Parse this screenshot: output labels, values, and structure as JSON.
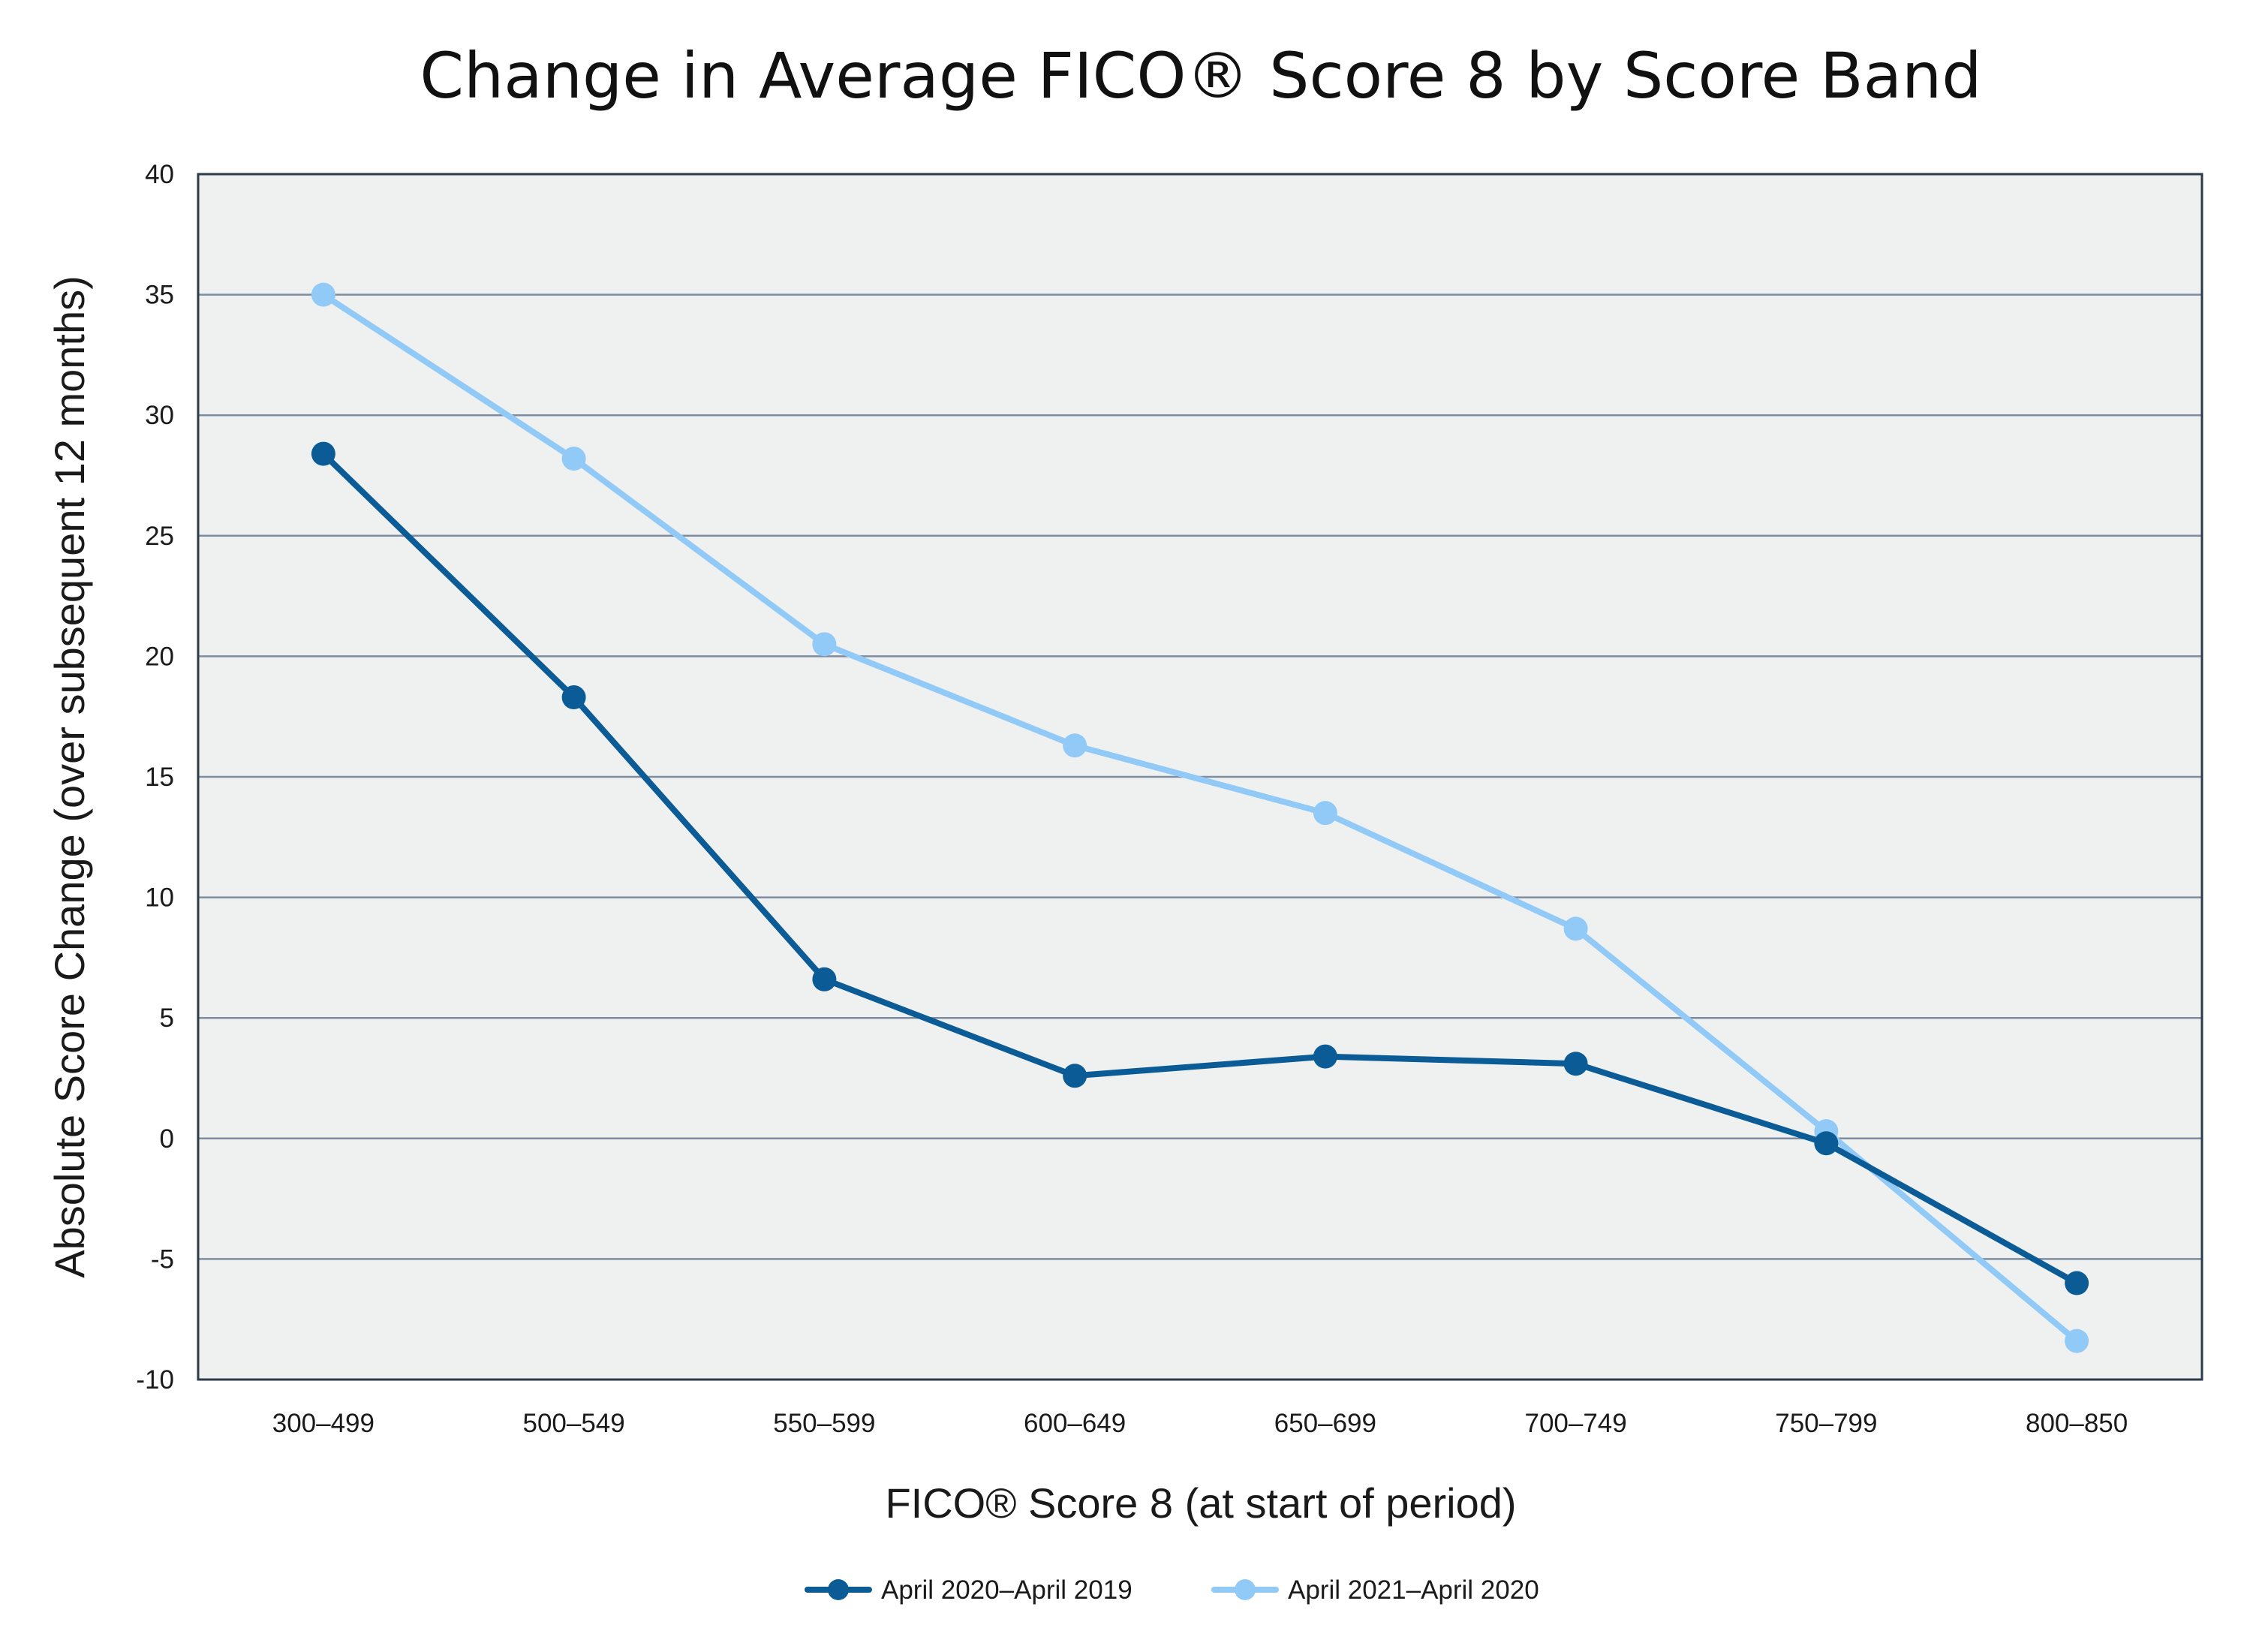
{
  "chart_data": {
    "type": "line",
    "title": "Change in Average FICO® Score 8 by Score Band",
    "xlabel": "FICO® Score 8 (at start of period)",
    "ylabel": "Absolute Score Change (over subsequent 12 months)",
    "categories": [
      "300–499",
      "500–549",
      "550–599",
      "600–649",
      "650–699",
      "700–749",
      "750–799",
      "800–850"
    ],
    "ylim": [
      -10,
      40
    ],
    "yticks": [
      40,
      35,
      30,
      25,
      20,
      15,
      10,
      5,
      0,
      -5,
      -10
    ],
    "grid": true,
    "legend_position": "bottom-center",
    "series": [
      {
        "name": "April 2020–April 2019",
        "color": "#0b5c96",
        "values": [
          28.4,
          18.3,
          6.6,
          2.6,
          3.4,
          3.1,
          -0.2,
          -6.0
        ]
      },
      {
        "name": "April 2021–April 2020",
        "color": "#91c9f7",
        "values": [
          35.0,
          28.2,
          20.5,
          16.3,
          13.5,
          8.7,
          0.3,
          -8.4
        ]
      }
    ]
  }
}
